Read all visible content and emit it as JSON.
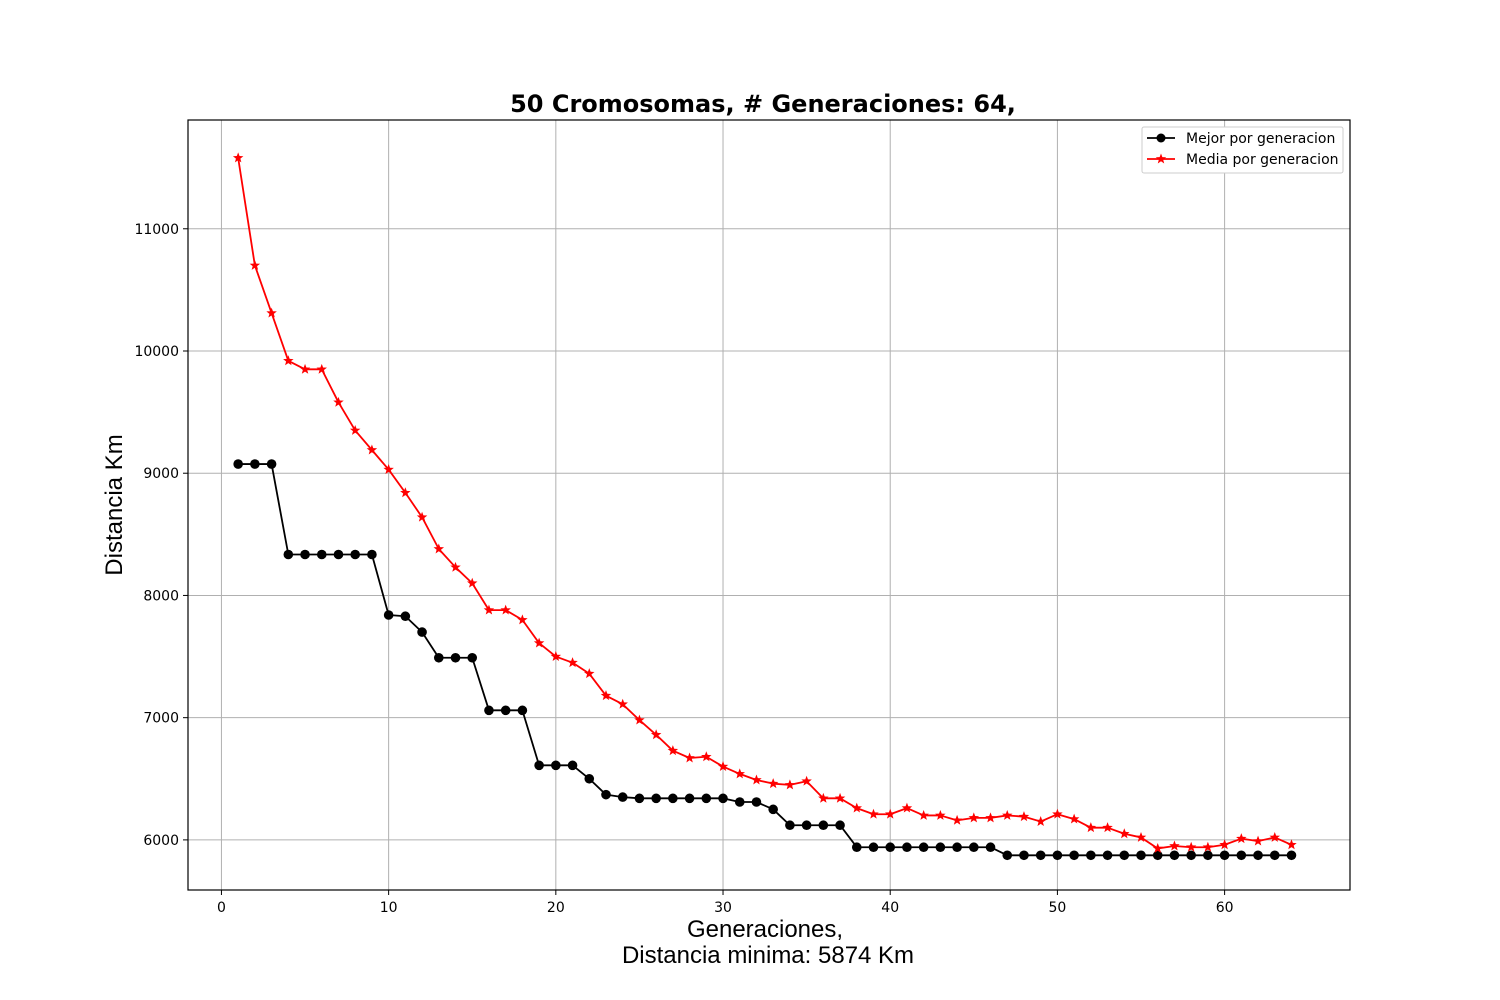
{
  "chart_data": {
    "type": "line",
    "title": "50 Cromosomas, # Generaciones: 64,",
    "xlabel": "Generaciones,",
    "xlabel_line2": "Distancia minima: 5874 Km",
    "ylabel": "Distancia Km",
    "xlim": [
      -2,
      67.5
    ],
    "ylim": [
      5590,
      11890
    ],
    "xticks": [
      0,
      10,
      20,
      30,
      40,
      50,
      60
    ],
    "yticks": [
      6000,
      7000,
      8000,
      9000,
      10000,
      11000
    ],
    "grid": true,
    "legend_position": "top-right",
    "x": [
      1,
      2,
      3,
      4,
      5,
      6,
      7,
      8,
      9,
      10,
      11,
      12,
      13,
      14,
      15,
      16,
      17,
      18,
      19,
      20,
      21,
      22,
      23,
      24,
      25,
      26,
      27,
      28,
      29,
      30,
      31,
      32,
      33,
      34,
      35,
      36,
      37,
      38,
      39,
      40,
      41,
      42,
      43,
      44,
      45,
      46,
      47,
      48,
      49,
      50,
      51,
      52,
      53,
      54,
      55,
      56,
      57,
      58,
      59,
      60,
      61,
      62,
      63,
      64
    ],
    "series": [
      {
        "name": "Mejor por generacion",
        "color": "#000000",
        "marker": "circle",
        "values": [
          9075,
          9075,
          9075,
          8335,
          8335,
          8335,
          8335,
          8335,
          8335,
          7840,
          7830,
          7700,
          7490,
          7490,
          7490,
          7060,
          7060,
          7060,
          6610,
          6610,
          6610,
          6500,
          6370,
          6350,
          6340,
          6340,
          6340,
          6340,
          6340,
          6340,
          6310,
          6310,
          6250,
          6120,
          6120,
          6120,
          6120,
          5940,
          5940,
          5940,
          5940,
          5940,
          5940,
          5940,
          5940,
          5940,
          5874,
          5874,
          5874,
          5874,
          5874,
          5874,
          5874,
          5874,
          5874,
          5874,
          5874,
          5874,
          5874,
          5874,
          5874,
          5874,
          5874,
          5874
        ]
      },
      {
        "name": "Media por generacion",
        "color": "#ff0000",
        "marker": "star",
        "values": [
          11580,
          10700,
          10310,
          9920,
          9850,
          9850,
          9580,
          9350,
          9190,
          9030,
          8840,
          8640,
          8380,
          8230,
          8100,
          7880,
          7880,
          7800,
          7610,
          7500,
          7450,
          7360,
          7180,
          7110,
          6980,
          6860,
          6730,
          6670,
          6680,
          6600,
          6540,
          6490,
          6460,
          6450,
          6480,
          6340,
          6340,
          6260,
          6210,
          6210,
          6260,
          6200,
          6200,
          6160,
          6180,
          6180,
          6200,
          6190,
          6150,
          6210,
          6170,
          6100,
          6100,
          6050,
          6020,
          5930,
          5950,
          5940,
          5940,
          5960,
          6010,
          5990,
          6020,
          5960
        ]
      }
    ]
  }
}
